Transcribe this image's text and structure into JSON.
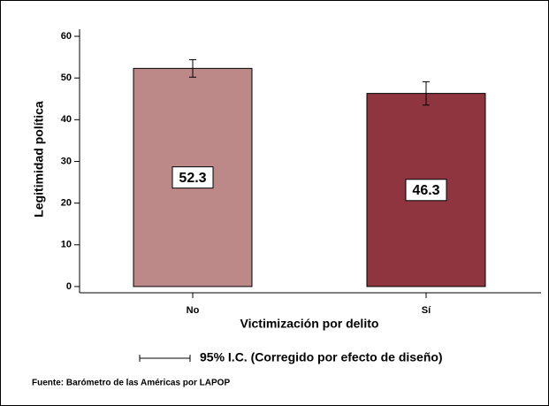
{
  "chart_data": {
    "type": "bar",
    "categories": [
      "No",
      "Sí"
    ],
    "values": [
      52.3,
      46.3
    ],
    "errors": [
      2.1,
      2.8
    ],
    "colors": [
      "#bc8888",
      "#8e3540"
    ],
    "ylim": [
      -1.5,
      62
    ],
    "yticks": [
      0,
      10,
      20,
      30,
      40,
      50,
      60
    ],
    "x_label": "Victimización por delito",
    "y_label": "Legitimidad política",
    "legend_label": "95% I.C. (Corregido por efecto de diseño)",
    "source": "Fuente: Barómetro de las Américas por LAPOP"
  }
}
